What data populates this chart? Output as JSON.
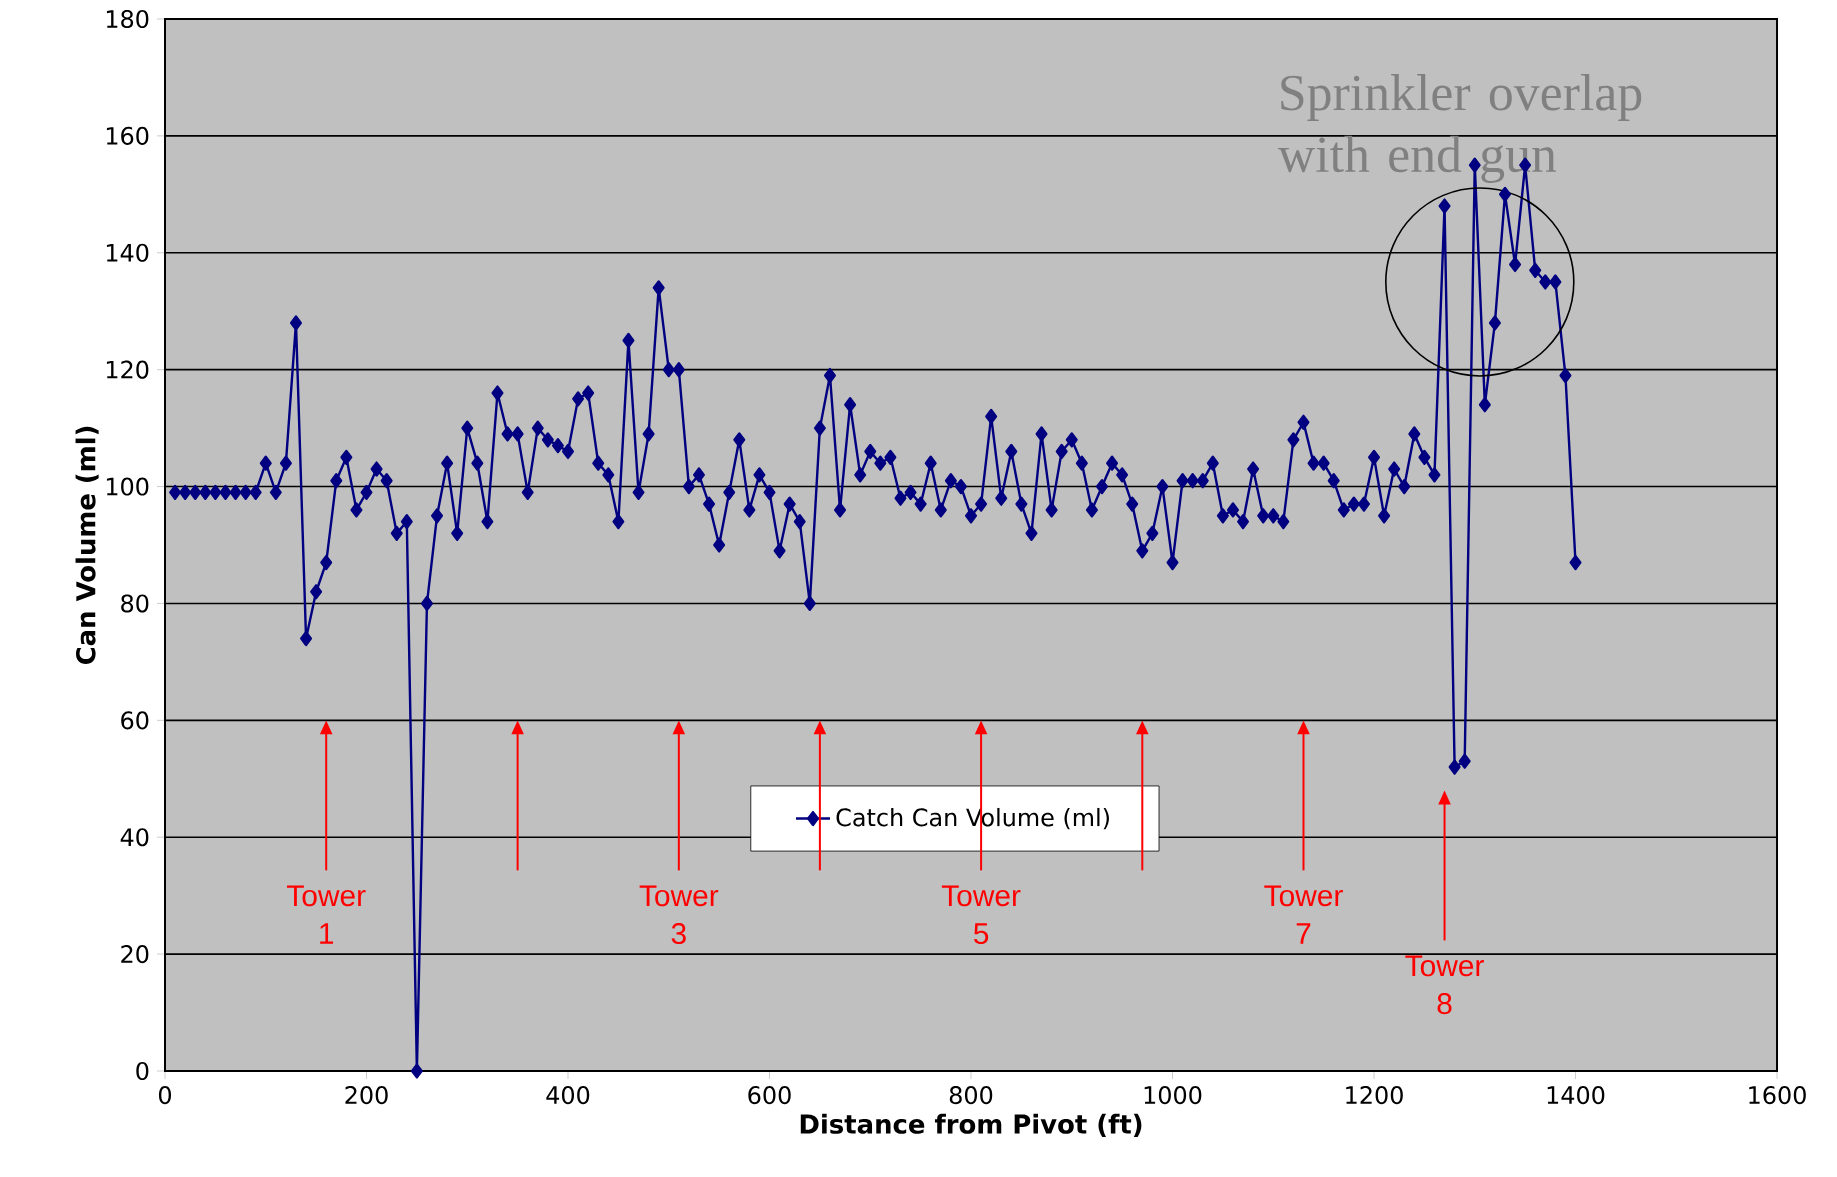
{
  "chart_data": {
    "type": "line",
    "xlabel": "Distance from Pivot (ft)",
    "ylabel": "Can Volume (ml)",
    "x": [
      10,
      20,
      30,
      40,
      50,
      60,
      70,
      80,
      90,
      100,
      110,
      120,
      130,
      140,
      150,
      160,
      170,
      180,
      190,
      200,
      210,
      220,
      230,
      240,
      250,
      260,
      270,
      280,
      290,
      300,
      310,
      320,
      330,
      340,
      350,
      360,
      370,
      380,
      390,
      400,
      410,
      420,
      430,
      440,
      450,
      460,
      470,
      480,
      490,
      500,
      510,
      520,
      530,
      540,
      550,
      560,
      570,
      580,
      590,
      600,
      610,
      620,
      630,
      640,
      650,
      660,
      670,
      680,
      690,
      700,
      710,
      720,
      730,
      740,
      750,
      760,
      770,
      780,
      790,
      800,
      810,
      820,
      830,
      840,
      850,
      860,
      870,
      880,
      890,
      900,
      910,
      920,
      930,
      940,
      950,
      960,
      970,
      980,
      990,
      1000,
      1010,
      1020,
      1030,
      1040,
      1050,
      1060,
      1070,
      1080,
      1090,
      1100,
      1110,
      1120,
      1130,
      1140,
      1150,
      1160,
      1170,
      1180,
      1190,
      1200,
      1210,
      1220,
      1230,
      1240,
      1250,
      1260,
      1270,
      1280,
      1290,
      1300,
      1310,
      1320,
      1330,
      1340,
      1350,
      1360,
      1370,
      1380,
      1390,
      1400
    ],
    "series": [
      {
        "name": "Catch Can Volume (ml)",
        "color": "#000080",
        "values": [
          99,
          99,
          99,
          99,
          99,
          99,
          99,
          99,
          99,
          104,
          99,
          104,
          128,
          74,
          82,
          87,
          101,
          105,
          96,
          99,
          103,
          101,
          92,
          94,
          0,
          80,
          95,
          104,
          92,
          110,
          104,
          94,
          116,
          109,
          109,
          99,
          110,
          108,
          107,
          106,
          115,
          116,
          104,
          102,
          94,
          125,
          99,
          109,
          134,
          120,
          120,
          100,
          102,
          97,
          90,
          99,
          108,
          96,
          102,
          99,
          89,
          97,
          94,
          80,
          110,
          119,
          96,
          114,
          102,
          106,
          104,
          105,
          98,
          99,
          97,
          104,
          96,
          101,
          100,
          95,
          97,
          112,
          98,
          106,
          97,
          92,
          109,
          96,
          106,
          108,
          104,
          96,
          100,
          104,
          102,
          97,
          89,
          92,
          100,
          87,
          101,
          101,
          101,
          104,
          95,
          96,
          94,
          103,
          95,
          95,
          94,
          108,
          111,
          104,
          104,
          101,
          96,
          97,
          97,
          105,
          95,
          103,
          100,
          109,
          105,
          102,
          148,
          52,
          53,
          155,
          114,
          128,
          150,
          138,
          155,
          137,
          135,
          135,
          119,
          87
        ]
      }
    ],
    "xlim": [
      0,
      1600
    ],
    "xticks": [
      0,
      200,
      400,
      600,
      800,
      1000,
      1200,
      1400,
      1600
    ],
    "ylim": [
      0,
      180
    ],
    "yticks": [
      0,
      20,
      40,
      60,
      80,
      100,
      120,
      140,
      160,
      180
    ],
    "grid": "y",
    "legend": "bottom",
    "marker": "diamond",
    "line_style": "solid",
    "annotations": [
      {
        "text": "Sprinkler overlap with end gun",
        "x": 1305,
        "y": 135
      },
      "Tower 1",
      "Tower 3",
      "Tower 5",
      "Tower 7",
      "Tower 8"
    ]
  }
}
